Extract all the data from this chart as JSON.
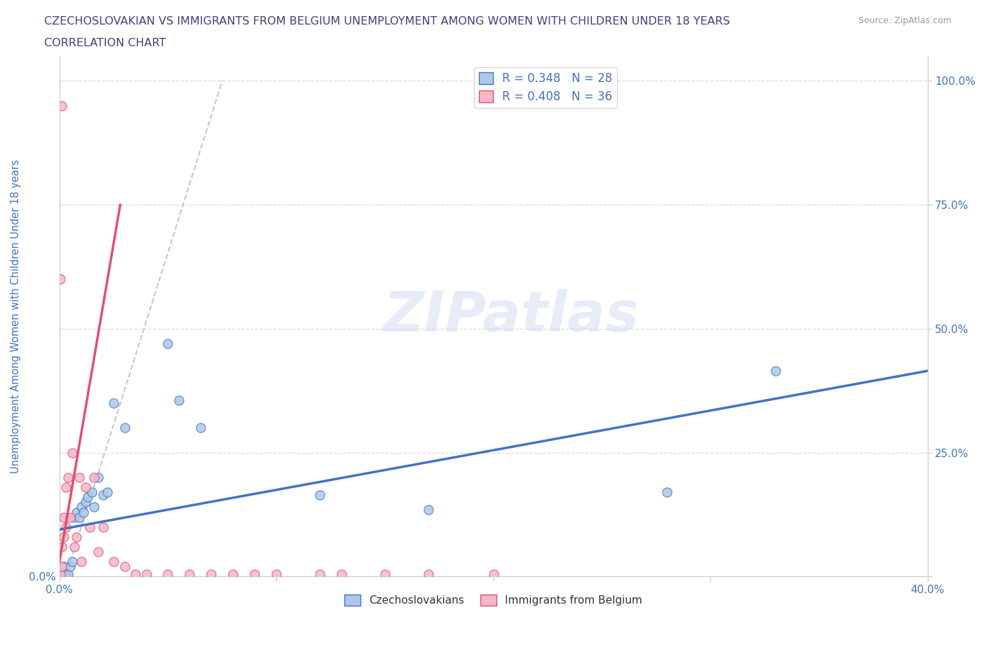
{
  "title_line1": "CZECHOSLOVAKIAN VS IMMIGRANTS FROM BELGIUM UNEMPLOYMENT AMONG WOMEN WITH CHILDREN UNDER 18 YEARS",
  "title_line2": "CORRELATION CHART",
  "source": "Source: ZipAtlas.com",
  "ylabel": "Unemployment Among Women with Children Under 18 years",
  "watermark": "ZIPatlas",
  "legend_blue_label": "Czechoslovakians",
  "legend_pink_label": "Immigrants from Belgium",
  "R_blue": 0.348,
  "N_blue": 28,
  "R_pink": 0.408,
  "N_pink": 36,
  "blue_color": "#adc8e8",
  "pink_color": "#f4b8c8",
  "blue_line_color": "#4472c4",
  "pink_line_color": "#e05070",
  "title_color": "#404080",
  "axis_label_color": "#4472c4",
  "tick_label_color": "#4472c4",
  "grid_color": "#d8d8e8",
  "xlim": [
    0.0,
    0.4
  ],
  "ylim": [
    0.0,
    1.05
  ],
  "xticks": [
    0.0,
    0.1,
    0.2,
    0.3,
    0.4
  ],
  "yticks": [
    0.0,
    0.25,
    0.5,
    0.75,
    1.0
  ],
  "blue_line_x0": 0.0,
  "blue_line_y0": 0.095,
  "blue_line_x1": 0.4,
  "blue_line_y1": 0.415,
  "pink_line_x0": 0.0,
  "pink_line_y0": 0.03,
  "pink_line_x1": 0.028,
  "pink_line_y1": 0.75,
  "dash_line_x0": 0.005,
  "dash_line_y0": 0.03,
  "dash_line_x1": 0.075,
  "dash_line_y1": 1.0,
  "blue_scatter_x": [
    0.001,
    0.002,
    0.002,
    0.003,
    0.004,
    0.005,
    0.006,
    0.007,
    0.008,
    0.009,
    0.01,
    0.011,
    0.012,
    0.013,
    0.015,
    0.016,
    0.018,
    0.02,
    0.022,
    0.025,
    0.03,
    0.05,
    0.055,
    0.065,
    0.12,
    0.17,
    0.28,
    0.33
  ],
  "blue_scatter_y": [
    0.005,
    0.008,
    0.02,
    0.005,
    0.005,
    0.02,
    0.03,
    0.12,
    0.13,
    0.12,
    0.14,
    0.13,
    0.15,
    0.16,
    0.17,
    0.14,
    0.2,
    0.165,
    0.17,
    0.35,
    0.3,
    0.47,
    0.355,
    0.3,
    0.165,
    0.135,
    0.17,
    0.415
  ],
  "pink_scatter_x": [
    0.0005,
    0.001,
    0.001,
    0.002,
    0.002,
    0.003,
    0.003,
    0.004,
    0.005,
    0.006,
    0.007,
    0.008,
    0.009,
    0.01,
    0.012,
    0.014,
    0.016,
    0.018,
    0.02,
    0.025,
    0.03,
    0.035,
    0.04,
    0.05,
    0.06,
    0.07,
    0.08,
    0.09,
    0.1,
    0.12,
    0.13,
    0.15,
    0.17,
    0.2,
    0.0005,
    0.001
  ],
  "pink_scatter_y": [
    0.005,
    0.02,
    0.06,
    0.08,
    0.12,
    0.1,
    0.18,
    0.2,
    0.12,
    0.25,
    0.06,
    0.08,
    0.2,
    0.03,
    0.18,
    0.1,
    0.2,
    0.05,
    0.1,
    0.03,
    0.02,
    0.005,
    0.005,
    0.005,
    0.005,
    0.005,
    0.005,
    0.005,
    0.005,
    0.005,
    0.005,
    0.005,
    0.005,
    0.005,
    0.6,
    0.95
  ]
}
